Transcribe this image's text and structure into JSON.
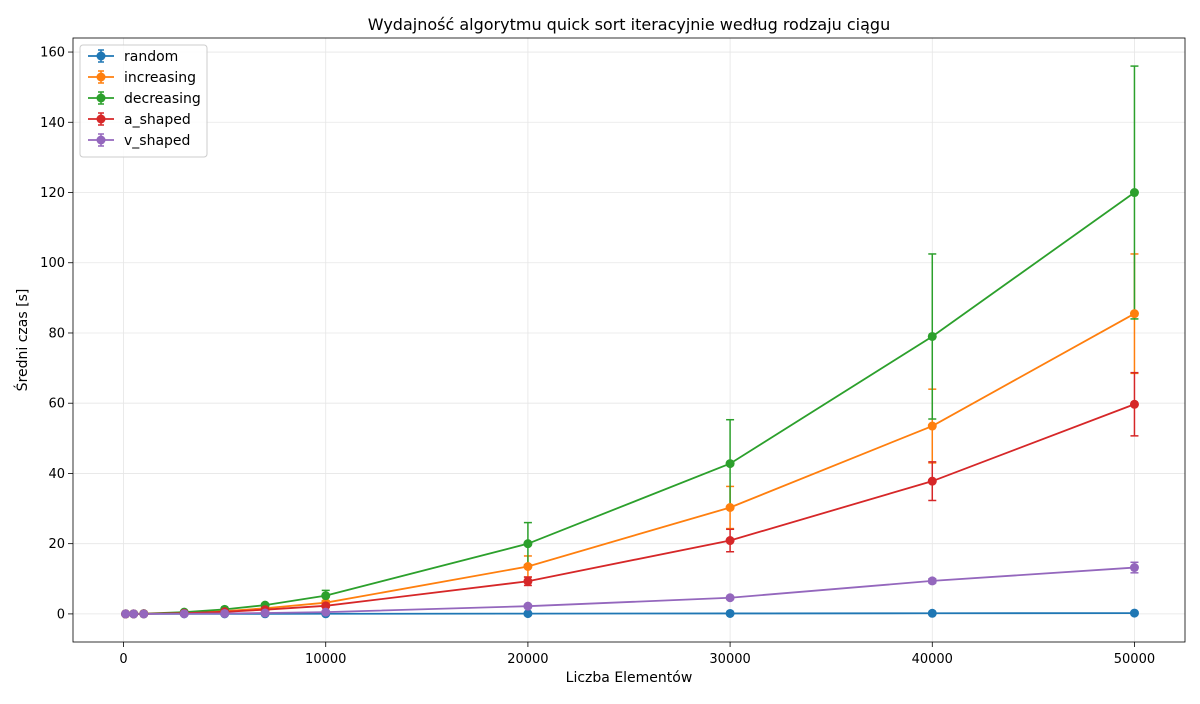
{
  "chart_data": {
    "type": "line",
    "title": "Wydajność algorytmu quick sort iteracyjnie według rodzaju ciągu",
    "xlabel": "Liczba Elementów",
    "ylabel": "Średni czas [s]",
    "xlim": [
      -2500,
      52500
    ],
    "ylim": [
      -8,
      164
    ],
    "xticks": [
      0,
      10000,
      20000,
      30000,
      40000,
      50000
    ],
    "yticks": [
      0,
      20,
      40,
      60,
      80,
      100,
      120,
      140,
      160
    ],
    "grid": true,
    "legend_position": "top-left",
    "x": [
      100,
      500,
      1000,
      3000,
      5000,
      7000,
      10000,
      20000,
      30000,
      40000,
      50000
    ],
    "series": [
      {
        "name": "random",
        "color": "#1f77b4",
        "values": [
          0,
          0,
          0,
          0.01,
          0.02,
          0.03,
          0.04,
          0.08,
          0.13,
          0.18,
          0.23
        ],
        "errors": [
          0,
          0,
          0,
          0,
          0,
          0,
          0,
          0,
          0,
          0,
          0
        ]
      },
      {
        "name": "increasing",
        "color": "#ff7f0e",
        "values": [
          0,
          0.01,
          0.05,
          0.3,
          0.8,
          1.6,
          3.2,
          13.5,
          30.3,
          53.5,
          85.5
        ],
        "errors": [
          0,
          0,
          0,
          0.05,
          0.1,
          0.3,
          0.5,
          3,
          6,
          10.5,
          17
        ]
      },
      {
        "name": "decreasing",
        "color": "#2ca02c",
        "values": [
          0,
          0.02,
          0.07,
          0.5,
          1.3,
          2.5,
          5.2,
          20,
          42.8,
          79,
          120
        ],
        "errors": [
          0,
          0,
          0.01,
          0.1,
          0.2,
          0.4,
          1.5,
          6,
          12.5,
          23.5,
          36
        ]
      },
      {
        "name": "a_shaped",
        "color": "#d62728",
        "values": [
          0,
          0.01,
          0.03,
          0.2,
          0.6,
          1.2,
          2.3,
          9.3,
          20.9,
          37.8,
          59.7
        ],
        "errors": [
          0,
          0,
          0,
          0.05,
          0.1,
          0.2,
          0.4,
          1.2,
          3.2,
          5.5,
          9
        ]
      },
      {
        "name": "v_shaped",
        "color": "#9467bd",
        "values": [
          0,
          0,
          0.01,
          0.05,
          0.12,
          0.25,
          0.5,
          2.2,
          4.6,
          9.4,
          13.2
        ],
        "errors": [
          0,
          0,
          0,
          0,
          0,
          0,
          0.05,
          0.2,
          0.3,
          0.6,
          1.5
        ]
      }
    ]
  }
}
